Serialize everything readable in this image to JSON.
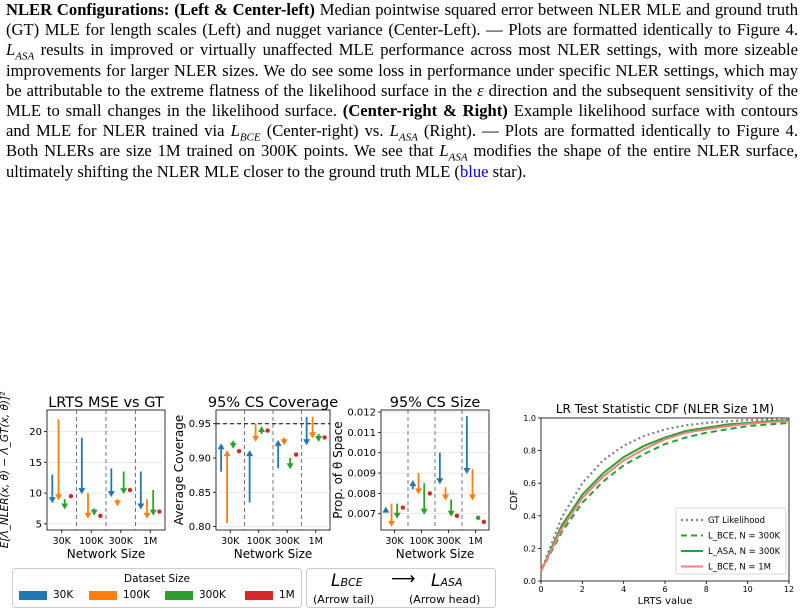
{
  "caption": {
    "s1_bold": "NLER Configurations: (Left & Center-left)",
    "s1_text": " Median pointwise squared error between NLER MLE and ground truth (GT) MLE for length scales (Left) and nugget variance (Center-Left). — Plots are formatted identically to Figure 4. ",
    "s2_a": " results in improved or virtually unaffected MLE performance across most NLER settings, with more sizeable improvements for larger NLER sizes. We do see some loss in performance under specific NLER settings, which may be attributable to the extreme flatness of the likelihood surface in the ",
    "epsilon": "ε",
    "s2_b": " direction and the subsequent sensitivity of the MLE to small changes in the likelihood surface. ",
    "s3_bold": "(Center-right & Right)",
    "s3_text": " Example likelihood surface with contours and MLE for NLER trained via ",
    "s3_mid": " (Center-right) vs. ",
    "s3_end": " (Right). — Plots are formatted identically to Figure 4. Both NLERs are size 1M trained on 300K points. We see that ",
    "s4_text": " modifies the shape of the entire NLER surface, ultimately shifting the NLER MLE closer to the ground truth MLE (",
    "blue_word": "blue",
    "s4_end": " star).",
    "L": "L",
    "ASA": "ASA",
    "BCE": "BCE"
  },
  "panels": {
    "p1": {
      "title": "LRTS MSE vs GT",
      "ylabel": "E[Λ_NLER(x, θ) − Λ_GT(x, θ)]²",
      "xlabel": "Network Size",
      "yticks": [
        "5",
        "10",
        "15",
        "20"
      ],
      "xticks": [
        "30K",
        "100K",
        "300K",
        "1M"
      ]
    },
    "p2": {
      "title": "95% CS Coverage",
      "ylabel": "Average Coverage",
      "xlabel": "Network Size",
      "yticks": [
        "0.80",
        "0.85",
        "0.90",
        "0.95"
      ],
      "xticks": [
        "30K",
        "100K",
        "300K",
        "1M"
      ]
    },
    "p3": {
      "title": "95% CS Size",
      "ylabel": "Prop. of θ Space",
      "xlabel": "Network Size",
      "yticks": [
        "0.007",
        "0.008",
        "0.009",
        "0.010",
        "0.011",
        "0.012"
      ],
      "xticks": [
        "30K",
        "100K",
        "300K",
        "1M"
      ]
    },
    "p4": {
      "title": "LR Test Statistic CDF (NLER Size 1M)",
      "ylabel": "CDF",
      "xlabel": "LRTS value",
      "yticks": [
        "0.0",
        "0.2",
        "0.4",
        "0.6",
        "0.8",
        "1.0"
      ],
      "xticks": [
        "0",
        "2",
        "4",
        "6",
        "8",
        "10",
        "12"
      ]
    }
  },
  "cdf_legend": [
    {
      "label": "GT Likelihood",
      "color": "#7f7f7f"
    },
    {
      "label": "L_BCE, N = 300K",
      "color": "#2ca02c"
    },
    {
      "label": "L_ASA, N = 300K",
      "color": "#2ca02c"
    },
    {
      "label": "L_BCE, N = 1M",
      "color": "#f08080"
    }
  ],
  "dataset_legend": {
    "title": "Dataset Size",
    "items": [
      {
        "label": "30K",
        "color": "#1f77b4"
      },
      {
        "label": "100K",
        "color": "#ff7f0e"
      },
      {
        "label": "300K",
        "color": "#2ca02c"
      },
      {
        "label": "1M",
        "color": "#d62728"
      }
    ]
  },
  "arrow_legend": {
    "left": "L",
    "left_sub": "BCE",
    "right": "L",
    "right_sub": "ASA",
    "arrow": "⟶",
    "left_label": "(Arrow tail)",
    "right_label": "(Arrow head)"
  },
  "chart_data": [
    {
      "type": "scatter",
      "title": "LRTS MSE vs GT",
      "xlabel": "Network Size",
      "ylabel": "E[Λ_NLER(x, θ) − Λ_GT(x, θ)]²",
      "categories": [
        "30K",
        "100K",
        "300K",
        "1M"
      ],
      "ylim": [
        4,
        23.5
      ],
      "series": [
        {
          "name": "30K",
          "tail": [
            13,
            19,
            14,
            13.5
          ],
          "head": [
            8.5,
            10,
            9.5,
            7.5
          ]
        },
        {
          "name": "100K",
          "tail": [
            22,
            10,
            9,
            9
          ],
          "head": [
            9,
            6,
            8,
            6
          ]
        },
        {
          "name": "300K",
          "tail": [
            9,
            7.5,
            13.5,
            10.5
          ],
          "head": [
            7.5,
            6.5,
            10,
            6.5
          ]
        },
        {
          "name": "1M",
          "tail": [
            9.5,
            6.3,
            10.5,
            7
          ],
          "head": [
            9.5,
            6.3,
            10.5,
            7
          ]
        }
      ]
    },
    {
      "type": "scatter",
      "title": "95% CS Coverage",
      "xlabel": "Network Size",
      "ylabel": "Average Coverage",
      "categories": [
        "30K",
        "100K",
        "300K",
        "1M"
      ],
      "ylim": [
        0.795,
        0.97
      ],
      "reference_line": 0.95,
      "series": [
        {
          "name": "30K",
          "tail": [
            0.88,
            0.835,
            0.885,
            0.96
          ],
          "head": [
            0.92,
            0.91,
            0.925,
            0.92
          ]
        },
        {
          "name": "100K",
          "tail": [
            0.805,
            0.95,
            0.93,
            0.96
          ],
          "head": [
            0.91,
            0.925,
            0.92,
            0.93
          ]
        },
        {
          "name": "300K",
          "tail": [
            0.925,
            0.935,
            0.9,
            0.935
          ],
          "head": [
            0.915,
            0.945,
            0.885,
            0.925
          ]
        },
        {
          "name": "1M",
          "tail": [
            0.91,
            0.94,
            0.905,
            0.93
          ],
          "head": [
            0.91,
            0.94,
            0.905,
            0.93
          ]
        }
      ]
    },
    {
      "type": "scatter",
      "title": "95% CS Size",
      "xlabel": "Network Size",
      "ylabel": "Prop. of θ Space",
      "categories": [
        "30K",
        "100K",
        "300K",
        "1M"
      ],
      "ylim": [
        0.0062,
        0.0121
      ],
      "series": [
        {
          "name": "30K",
          "tail": [
            0.0071,
            0.0082,
            0.01,
            0.0118
          ],
          "head": [
            0.0073,
            0.0086,
            0.0085,
            0.009
          ]
        },
        {
          "name": "100K",
          "tail": [
            0.0075,
            0.009,
            0.0083,
            0.0092
          ],
          "head": [
            0.0064,
            0.008,
            0.0077,
            0.0077
          ]
        },
        {
          "name": "300K",
          "tail": [
            0.0075,
            0.0085,
            0.0077,
            0.0069
          ],
          "head": [
            0.0068,
            0.007,
            0.0069,
            0.0068
          ]
        },
        {
          "name": "1M",
          "tail": [
            0.0073,
            0.008,
            0.0069,
            0.0066
          ],
          "head": [
            0.0073,
            0.008,
            0.0069,
            0.0066
          ]
        }
      ]
    },
    {
      "type": "line",
      "title": "LR Test Statistic CDF (NLER Size 1M)",
      "xlabel": "LRTS value",
      "ylabel": "CDF",
      "xlim": [
        0,
        12
      ],
      "ylim": [
        0,
        1.0
      ],
      "x": [
        0,
        1,
        2,
        3,
        4,
        5,
        6,
        7,
        8,
        9,
        10,
        11,
        12
      ],
      "series": [
        {
          "name": "GT Likelihood",
          "values": [
            0.06,
            0.39,
            0.6,
            0.74,
            0.83,
            0.89,
            0.93,
            0.955,
            0.97,
            0.98,
            0.987,
            0.99,
            0.995
          ]
        },
        {
          "name": "L_BCE, N = 300K",
          "values": [
            0.06,
            0.3,
            0.48,
            0.61,
            0.71,
            0.78,
            0.84,
            0.88,
            0.91,
            0.93,
            0.95,
            0.96,
            0.97
          ]
        },
        {
          "name": "L_ASA, N = 300K",
          "values": [
            0.06,
            0.34,
            0.53,
            0.66,
            0.76,
            0.83,
            0.88,
            0.92,
            0.94,
            0.96,
            0.97,
            0.98,
            0.985
          ]
        },
        {
          "name": "L_BCE, N = 1M",
          "values": [
            0.06,
            0.32,
            0.51,
            0.64,
            0.74,
            0.81,
            0.87,
            0.91,
            0.93,
            0.95,
            0.965,
            0.975,
            0.98
          ]
        }
      ]
    }
  ]
}
